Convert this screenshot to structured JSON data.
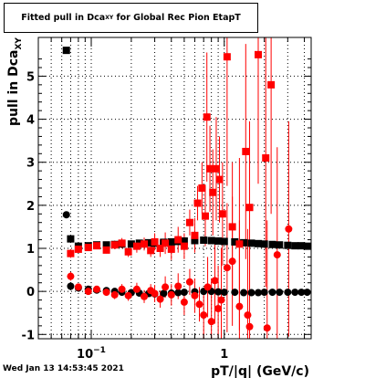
{
  "chart_data": {
    "type": "scatter",
    "title": {
      "main": "Fitted pull in Dca",
      "sub": "XY",
      "rest": " for Global Rec Pion EtapT"
    },
    "ylabel": {
      "main": "pull in Dca",
      "sub": "XY"
    },
    "xlabel": "pT/|q| (GeV/c)",
    "x_scale": "log",
    "xlim": [
      0.04,
      4.5
    ],
    "ylim": [
      -1.1,
      5.9
    ],
    "y_ticks": [
      "-1",
      "0",
      "1",
      "2",
      "3",
      "4",
      "5"
    ],
    "x_tick_labels": [
      {
        "value": 0.1,
        "base": "10",
        "exp": "−1"
      },
      {
        "value": 1,
        "base": "1",
        "exp": ""
      }
    ],
    "grid": true,
    "series": [
      {
        "marker": "square",
        "color": "#000000",
        "points": [
          [
            0.065,
            5.6,
            0.05
          ],
          [
            0.07,
            1.22,
            0.05
          ],
          [
            0.08,
            1.05,
            0.04
          ],
          [
            0.095,
            1.06,
            0.04
          ],
          [
            0.11,
            1.08,
            0.04
          ],
          [
            0.13,
            1.08,
            0.03
          ],
          [
            0.15,
            1.09,
            0.03
          ],
          [
            0.17,
            1.1,
            0.03
          ],
          [
            0.2,
            1.1,
            0.03
          ],
          [
            0.23,
            1.12,
            0.03
          ],
          [
            0.27,
            1.13,
            0.03
          ],
          [
            0.3,
            1.12,
            0.03
          ],
          [
            0.35,
            1.14,
            0.03
          ],
          [
            0.4,
            1.15,
            0.03
          ],
          [
            0.45,
            1.16,
            0.03
          ],
          [
            0.5,
            1.17,
            0.03
          ],
          [
            0.6,
            1.18,
            0.03
          ],
          [
            0.7,
            1.19,
            0.03
          ],
          [
            0.8,
            1.18,
            0.03
          ],
          [
            0.9,
            1.17,
            0.03
          ],
          [
            1.0,
            1.16,
            0.03
          ],
          [
            1.2,
            1.15,
            0.03
          ],
          [
            1.4,
            1.13,
            0.03
          ],
          [
            1.6,
            1.12,
            0.03
          ],
          [
            1.8,
            1.11,
            0.03
          ],
          [
            2.0,
            1.1,
            0.03
          ],
          [
            2.3,
            1.09,
            0.03
          ],
          [
            2.6,
            1.08,
            0.03
          ],
          [
            3.0,
            1.07,
            0.03
          ],
          [
            3.4,
            1.06,
            0.03
          ],
          [
            3.8,
            1.06,
            0.03
          ],
          [
            4.2,
            1.05,
            0.03
          ]
        ]
      },
      {
        "marker": "circle",
        "color": "#000000",
        "points": [
          [
            0.065,
            1.78,
            0.05
          ],
          [
            0.07,
            0.12,
            0.04
          ],
          [
            0.08,
            0.08,
            0.03
          ],
          [
            0.095,
            0.05,
            0.03
          ],
          [
            0.11,
            0.03,
            0.03
          ],
          [
            0.13,
            0.02,
            0.03
          ],
          [
            0.15,
            0.0,
            0.03
          ],
          [
            0.17,
            -0.02,
            0.03
          ],
          [
            0.2,
            -0.03,
            0.03
          ],
          [
            0.23,
            -0.04,
            0.03
          ],
          [
            0.27,
            -0.05,
            0.03
          ],
          [
            0.3,
            -0.06,
            0.03
          ],
          [
            0.35,
            -0.05,
            0.03
          ],
          [
            0.4,
            -0.04,
            0.03
          ],
          [
            0.45,
            -0.03,
            0.03
          ],
          [
            0.5,
            -0.02,
            0.03
          ],
          [
            0.6,
            -0.01,
            0.03
          ],
          [
            0.7,
            0.0,
            0.03
          ],
          [
            0.8,
            0.0,
            0.03
          ],
          [
            0.9,
            -0.01,
            0.03
          ],
          [
            1.0,
            -0.02,
            0.03
          ],
          [
            1.2,
            -0.02,
            0.03
          ],
          [
            1.4,
            -0.03,
            0.03
          ],
          [
            1.6,
            -0.03,
            0.03
          ],
          [
            1.8,
            -0.03,
            0.03
          ],
          [
            2.0,
            -0.02,
            0.03
          ],
          [
            2.3,
            -0.02,
            0.03
          ],
          [
            2.6,
            -0.02,
            0.03
          ],
          [
            3.0,
            -0.02,
            0.03
          ],
          [
            3.4,
            -0.02,
            0.03
          ],
          [
            3.8,
            -0.02,
            0.03
          ],
          [
            4.2,
            -0.02,
            0.03
          ]
        ]
      },
      {
        "marker": "square",
        "color": "#ff0000",
        "points": [
          [
            0.07,
            0.88,
            0.1
          ],
          [
            0.08,
            0.98,
            0.08
          ],
          [
            0.095,
            1.02,
            0.08
          ],
          [
            0.11,
            1.06,
            0.08
          ],
          [
            0.13,
            0.96,
            0.08
          ],
          [
            0.15,
            1.08,
            0.1
          ],
          [
            0.17,
            1.12,
            0.12
          ],
          [
            0.19,
            0.92,
            0.12
          ],
          [
            0.22,
            1.05,
            0.15
          ],
          [
            0.25,
            1.1,
            0.15
          ],
          [
            0.28,
            0.95,
            0.15
          ],
          [
            0.3,
            1.15,
            0.2
          ],
          [
            0.33,
            1.0,
            0.2
          ],
          [
            0.36,
            1.12,
            0.25
          ],
          [
            0.4,
            0.98,
            0.25
          ],
          [
            0.45,
            1.2,
            0.3
          ],
          [
            0.5,
            1.05,
            0.3
          ],
          [
            0.55,
            1.6,
            0.3
          ],
          [
            0.6,
            1.3,
            0.4
          ],
          [
            0.63,
            2.05,
            0.4
          ],
          [
            0.68,
            2.4,
            0.6
          ],
          [
            0.72,
            1.75,
            0.7
          ],
          [
            0.74,
            4.05,
            1.5
          ],
          [
            0.78,
            2.85,
            1.0
          ],
          [
            0.82,
            2.3,
            1.0
          ],
          [
            0.87,
            2.85,
            1.2
          ],
          [
            0.92,
            2.6,
            1.0
          ],
          [
            0.97,
            1.8,
            1.2
          ],
          [
            1.05,
            5.45,
            3.0
          ],
          [
            1.15,
            1.5,
            1.5
          ],
          [
            1.3,
            1.1,
            2.0
          ],
          [
            1.45,
            3.25,
            2.5
          ],
          [
            1.55,
            1.95,
            2.0
          ],
          [
            1.8,
            5.5,
            3.0
          ],
          [
            2.05,
            3.1,
            3.0
          ],
          [
            2.25,
            4.8,
            3.0
          ]
        ]
      },
      {
        "marker": "circle",
        "color": "#ff0000",
        "points": [
          [
            0.07,
            0.35,
            0.1
          ],
          [
            0.08,
            0.1,
            0.08
          ],
          [
            0.095,
            0.0,
            0.08
          ],
          [
            0.11,
            0.05,
            0.08
          ],
          [
            0.13,
            -0.02,
            0.08
          ],
          [
            0.15,
            -0.08,
            0.1
          ],
          [
            0.17,
            0.05,
            0.12
          ],
          [
            0.19,
            -0.1,
            0.12
          ],
          [
            0.22,
            0.05,
            0.15
          ],
          [
            0.25,
            -0.12,
            0.15
          ],
          [
            0.28,
            0.02,
            0.15
          ],
          [
            0.3,
            -0.05,
            0.2
          ],
          [
            0.33,
            -0.18,
            0.2
          ],
          [
            0.36,
            0.1,
            0.25
          ],
          [
            0.4,
            -0.08,
            0.25
          ],
          [
            0.45,
            0.12,
            0.3
          ],
          [
            0.5,
            -0.25,
            0.3
          ],
          [
            0.55,
            0.22,
            0.3
          ],
          [
            0.6,
            -0.1,
            0.4
          ],
          [
            0.65,
            -0.3,
            0.4
          ],
          [
            0.7,
            -0.55,
            0.6
          ],
          [
            0.75,
            0.1,
            0.7
          ],
          [
            0.8,
            -0.7,
            1.0
          ],
          [
            0.85,
            0.25,
            1.0
          ],
          [
            0.9,
            -0.4,
            1.0
          ],
          [
            0.95,
            -0.2,
            1.2
          ],
          [
            1.05,
            0.55,
            1.5
          ],
          [
            1.15,
            0.7,
            1.5
          ],
          [
            1.3,
            -0.35,
            2.0
          ],
          [
            1.5,
            -0.55,
            2.0
          ],
          [
            1.55,
            -0.82,
            2.0
          ],
          [
            2.1,
            -0.85,
            2.5
          ],
          [
            2.5,
            0.85,
            2.5
          ],
          [
            3.05,
            1.45,
            2.5
          ]
        ]
      }
    ]
  },
  "footer": "Wed Jan 13 14:53:45 2021"
}
